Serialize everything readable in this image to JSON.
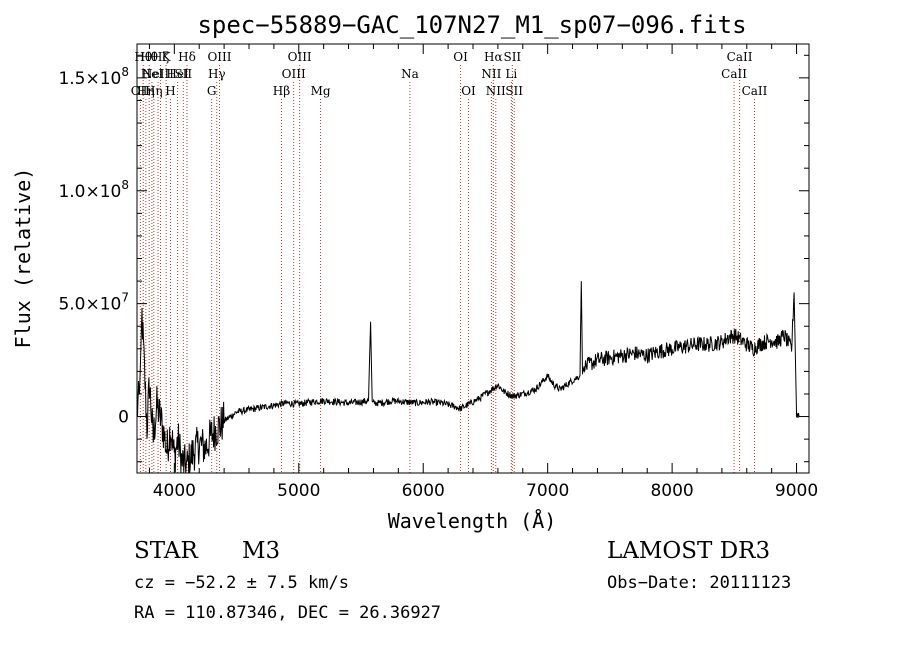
{
  "chart_data": {
    "type": "line",
    "title": "spec−55889−GAC_107N27_M1_sp07−096.fits",
    "xlabel": "Wavelength (Å)",
    "ylabel": "Flux (relative)",
    "xlim": [
      3700,
      9100
    ],
    "ylim": [
      -25000000,
      165000000
    ],
    "x_ticks": [
      4000,
      5000,
      6000,
      7000,
      8000,
      9000
    ],
    "x_tick_labels": [
      "4000",
      "5000",
      "6000",
      "7000",
      "8000",
      "9000"
    ],
    "y_ticks": [
      0,
      50000000,
      100000000,
      150000000
    ],
    "y_tick_labels": [
      {
        "mantissa": "0",
        "exp": ""
      },
      {
        "mantissa": "5.0×10",
        "exp": "7"
      },
      {
        "mantissa": "1.0×10",
        "exp": "8"
      },
      {
        "mantissa": "1.5×10",
        "exp": "8"
      }
    ],
    "series": [
      {
        "name": "flux",
        "x": [
          3700,
          3720,
          3740,
          3760,
          3780,
          3800,
          3830,
          3860,
          3900,
          3940,
          3970,
          4000,
          4030,
          4060,
          4100,
          4150,
          4200,
          4250,
          4300,
          4350,
          4400,
          4500,
          4600,
          4700,
          4800,
          4900,
          5000,
          5100,
          5200,
          5300,
          5400,
          5500,
          5560,
          5577,
          5590,
          5650,
          5750,
          5850,
          5950,
          6050,
          6150,
          6250,
          6300,
          6350,
          6450,
          6550,
          6600,
          6650,
          6720,
          6800,
          6900,
          6950,
          7000,
          7050,
          7100,
          7200,
          7260,
          7270,
          7280,
          7300,
          7400,
          7500,
          7600,
          7700,
          7800,
          7900,
          8000,
          8100,
          8200,
          8300,
          8400,
          8450,
          8500,
          8550,
          8600,
          8650,
          8700,
          8750,
          8800,
          8850,
          8900,
          8940,
          8960,
          8980,
          9000,
          9020
        ],
        "y": [
          2000000,
          10000000,
          45000000,
          20000000,
          -5000000,
          15000000,
          -10000000,
          5000000,
          -3000000,
          -15000000,
          -5000000,
          -18000000,
          -10000000,
          -20000000,
          -22000000,
          -16000000,
          -12000000,
          -14000000,
          -8000000,
          -5000000,
          -2000000,
          2000000,
          3000000,
          4000000,
          5000000,
          6000000,
          5500000,
          6500000,
          7000000,
          6500000,
          6000000,
          6500000,
          7000000,
          42000000,
          6000000,
          6000000,
          7000000,
          6500000,
          6000000,
          6500000,
          6000000,
          4500000,
          3500000,
          5000000,
          8000000,
          12000000,
          14000000,
          11000000,
          9000000,
          10000000,
          12000000,
          15000000,
          18000000,
          14000000,
          12000000,
          16000000,
          18000000,
          60000000,
          20000000,
          22000000,
          25000000,
          26000000,
          27000000,
          28000000,
          27000000,
          29000000,
          30000000,
          31000000,
          32000000,
          32000000,
          33000000,
          35000000,
          36000000,
          34000000,
          32000000,
          30000000,
          32000000,
          33000000,
          34000000,
          33000000,
          36000000,
          32000000,
          30000000,
          55000000,
          2000000,
          0
        ]
      }
    ],
    "lines": [
      {
        "wave": 3727,
        "label": "OII",
        "tier": 3
      },
      {
        "wave": 3750,
        "label": "Hθ",
        "tier": 1
      },
      {
        "wave": 3771,
        "label": "Hη",
        "tier": 3
      },
      {
        "wave": 3798,
        "label": "Hθ",
        "tier": 1
      },
      {
        "wave": 3820,
        "label": "HeI",
        "tier": 2
      },
      {
        "wave": 3835,
        "label": "Hη",
        "tier": 3
      },
      {
        "wave": 3869,
        "label": "NeIII",
        "tier": 2
      },
      {
        "wave": 3889,
        "label": "Hζ",
        "tier": 1
      },
      {
        "wave": 3934,
        "label": "K",
        "tier": 1
      },
      {
        "wave": 3969,
        "label": "H",
        "tier": 3
      },
      {
        "wave": 4026,
        "label": "HeI",
        "tier": 2
      },
      {
        "wave": 4072,
        "label": "SII",
        "tier": 2
      },
      {
        "wave": 4102,
        "label": "Hδ",
        "tier": 1
      },
      {
        "wave": 4300,
        "label": "G",
        "tier": 3
      },
      {
        "wave": 4341,
        "label": "Hγ",
        "tier": 2
      },
      {
        "wave": 4363,
        "label": "OIII",
        "tier": 1
      },
      {
        "wave": 4861,
        "label": "Hβ",
        "tier": 3
      },
      {
        "wave": 4959,
        "label": "OIII",
        "tier": 2
      },
      {
        "wave": 5007,
        "label": "OIII",
        "tier": 1
      },
      {
        "wave": 5175,
        "label": "Mg",
        "tier": 3
      },
      {
        "wave": 5893,
        "label": "Na",
        "tier": 2
      },
      {
        "wave": 6300,
        "label": "OI",
        "tier": 1
      },
      {
        "wave": 6364,
        "label": "OI",
        "tier": 3
      },
      {
        "wave": 6548,
        "label": "NII",
        "tier": 2
      },
      {
        "wave": 6563,
        "label": "Hα",
        "tier": 1
      },
      {
        "wave": 6583,
        "label": "NII",
        "tier": 3
      },
      {
        "wave": 6708,
        "label": "Li",
        "tier": 2
      },
      {
        "wave": 6716,
        "label": "SII",
        "tier": 1
      },
      {
        "wave": 6731,
        "label": "SII",
        "tier": 3
      },
      {
        "wave": 8498,
        "label": "CaII",
        "tier": 2
      },
      {
        "wave": 8542,
        "label": "CaII",
        "tier": 1
      },
      {
        "wave": 8662,
        "label": "CaII",
        "tier": 3
      }
    ]
  },
  "info": {
    "class": "STAR",
    "subclass": "M3",
    "cz": "cz = −52.2 ± 7.5 km/s",
    "coords": "RA = 110.87346, DEC =  26.36927",
    "survey": "LAMOST DR3",
    "obs_date": "Obs−Date: 20111123"
  },
  "colors": {
    "line_marker": "#c0392b",
    "spectrum": "#000000",
    "background": "#ffffff"
  }
}
